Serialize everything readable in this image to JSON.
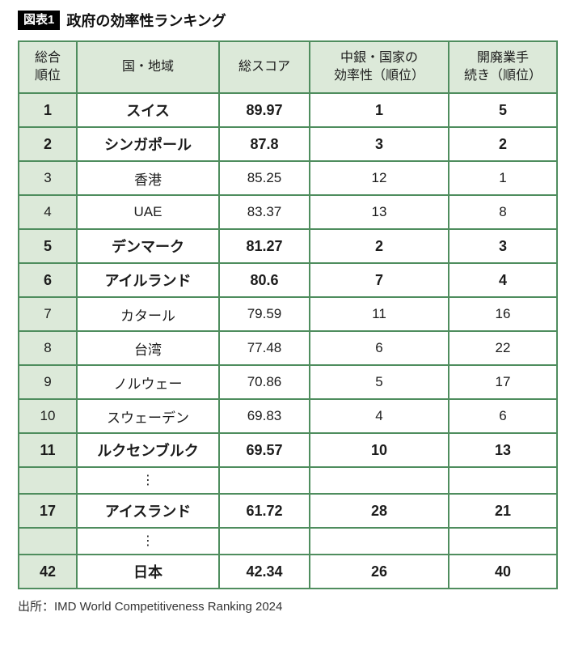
{
  "figure": {
    "tag": "図表1",
    "title": "政府の効率性ランキング",
    "source": "出所：IMD World Competitiveness Ranking 2024"
  },
  "colors": {
    "border_green": "#4f8d5e",
    "header_bg": "#dce9d9",
    "tag_bg": "#000000",
    "tag_text": "#ffffff"
  },
  "chart_data": {
    "type": "table",
    "title": "政府の効率性ランキング",
    "ellipsis_glyph": "⋮",
    "columns": [
      "総合\n順位",
      "国・地域",
      "総スコア",
      "中銀・国家の\n効率性（順位）",
      "開廃業手\n続き（順位）"
    ],
    "rows": [
      {
        "rank": "1",
        "country": "スイス",
        "score": "89.97",
        "central_bank_rank": "1",
        "business_proc_rank": "5",
        "bold": true
      },
      {
        "rank": "2",
        "country": "シンガポール",
        "score": "87.8",
        "central_bank_rank": "3",
        "business_proc_rank": "2",
        "bold": true
      },
      {
        "rank": "3",
        "country": "香港",
        "score": "85.25",
        "central_bank_rank": "12",
        "business_proc_rank": "1",
        "bold": false
      },
      {
        "rank": "4",
        "country": "UAE",
        "score": "83.37",
        "central_bank_rank": "13",
        "business_proc_rank": "8",
        "bold": false
      },
      {
        "rank": "5",
        "country": "デンマーク",
        "score": "81.27",
        "central_bank_rank": "2",
        "business_proc_rank": "3",
        "bold": true
      },
      {
        "rank": "6",
        "country": "アイルランド",
        "score": "80.6",
        "central_bank_rank": "7",
        "business_proc_rank": "4",
        "bold": true
      },
      {
        "rank": "7",
        "country": "カタール",
        "score": "79.59",
        "central_bank_rank": "11",
        "business_proc_rank": "16",
        "bold": false
      },
      {
        "rank": "8",
        "country": "台湾",
        "score": "77.48",
        "central_bank_rank": "6",
        "business_proc_rank": "22",
        "bold": false
      },
      {
        "rank": "9",
        "country": "ノルウェー",
        "score": "70.86",
        "central_bank_rank": "5",
        "business_proc_rank": "17",
        "bold": false
      },
      {
        "rank": "10",
        "country": "スウェーデン",
        "score": "69.83",
        "central_bank_rank": "4",
        "business_proc_rank": "6",
        "bold": false
      },
      {
        "rank": "11",
        "country": "ルクセンブルク",
        "score": "69.57",
        "central_bank_rank": "10",
        "business_proc_rank": "13",
        "bold": true
      },
      {
        "ellipsis": true
      },
      {
        "rank": "17",
        "country": "アイスランド",
        "score": "61.72",
        "central_bank_rank": "28",
        "business_proc_rank": "21",
        "bold": true
      },
      {
        "ellipsis": true
      },
      {
        "rank": "42",
        "country": "日本",
        "score": "42.34",
        "central_bank_rank": "26",
        "business_proc_rank": "40",
        "bold": true
      }
    ]
  }
}
